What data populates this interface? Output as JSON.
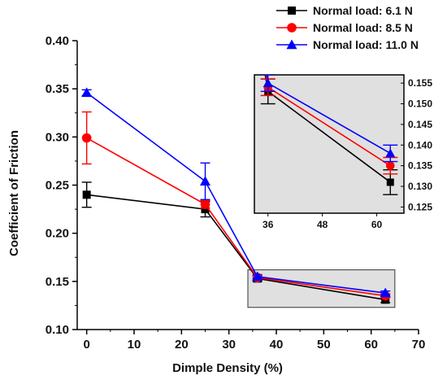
{
  "chart_data": {
    "type": "line",
    "xlabel": "Dimple Density (%)",
    "ylabel": "Coefficient of Friction",
    "xlim": [
      -2,
      70
    ],
    "ylim": [
      0.1,
      0.4
    ],
    "xticks": [
      0,
      10,
      20,
      30,
      40,
      50,
      60,
      70
    ],
    "yticks": [
      0.1,
      0.15,
      0.2,
      0.25,
      0.3,
      0.35,
      0.4
    ],
    "x": [
      0,
      25,
      36,
      63
    ],
    "series": [
      {
        "name": "Normal load: 6.1 N",
        "color": "#000000",
        "marker": "square",
        "values": [
          0.24,
          0.225,
          0.153,
          0.131
        ],
        "errors": [
          0.013,
          0.008,
          0.003,
          0.003
        ]
      },
      {
        "name": "Normal load: 8.5 N",
        "color": "#ff0000",
        "marker": "circle",
        "values": [
          0.299,
          0.23,
          0.154,
          0.135
        ],
        "errors": [
          0.027,
          0.004,
          0.002,
          0.002
        ]
      },
      {
        "name": "Normal load: 11.0 N",
        "color": "#0000ff",
        "marker": "triangle",
        "values": [
          0.346,
          0.254,
          0.155,
          0.138
        ],
        "errors": [
          0.003,
          0.019,
          0.002,
          0.002
        ]
      }
    ],
    "legend_position": "top-right",
    "highlight_box": {
      "x_range": [
        34,
        65
      ],
      "y_range": [
        0.123,
        0.162
      ]
    },
    "inset": {
      "xlim": [
        33,
        66
      ],
      "ylim": [
        0.1235,
        0.157
      ],
      "xticks": [
        36,
        48,
        60
      ],
      "yticks": [
        0.125,
        0.13,
        0.135,
        0.14,
        0.145,
        0.15,
        0.155
      ],
      "background": "#e0e0e0"
    }
  }
}
